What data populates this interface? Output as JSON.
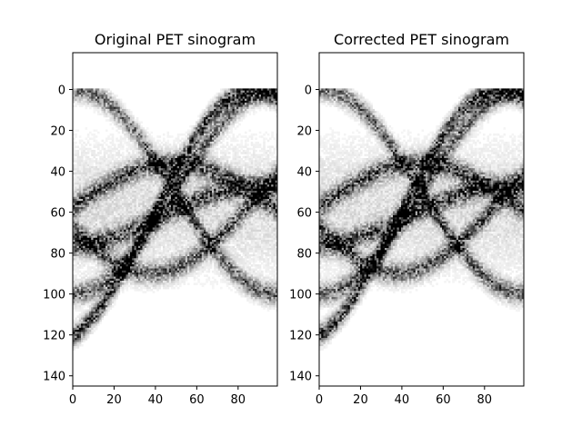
{
  "chart_data": [
    {
      "type": "heatmap",
      "title": "Original PET sinogram",
      "xlabel": "",
      "ylabel": "",
      "x_ticks": [
        0,
        20,
        40,
        60,
        80
      ],
      "y_ticks": [
        0,
        20,
        40,
        60,
        80,
        100,
        120,
        140
      ],
      "xlim": [
        0,
        99
      ],
      "ylim": [
        145,
        -18
      ],
      "colormap": "gray_r",
      "grid": false,
      "image_size": [
        100,
        128
      ],
      "sinusoid_traces": [
        {
          "center_row": 50,
          "amplitude": 50,
          "phase": 0.0,
          "weight": 0.55
        },
        {
          "center_row": 50,
          "amplitude": 50,
          "phase": 3.14,
          "weight": 0.55
        },
        {
          "center_row": 62,
          "amplitude": 62,
          "phase": 0.35,
          "weight": 0.75
        },
        {
          "center_row": 58,
          "amplitude": 22,
          "phase": 1.6,
          "weight": 0.6
        },
        {
          "center_row": 55,
          "amplitude": 35,
          "phase": -1.2,
          "weight": 0.55
        },
        {
          "center_row": 62,
          "amplitude": 15,
          "phase": 0.2,
          "weight": 0.6
        }
      ]
    },
    {
      "type": "heatmap",
      "title": "Corrected PET sinogram",
      "xlabel": "",
      "ylabel": "",
      "x_ticks": [
        0,
        20,
        40,
        60,
        80
      ],
      "y_ticks": [
        0,
        20,
        40,
        60,
        80,
        100,
        120,
        140
      ],
      "xlim": [
        0,
        99
      ],
      "ylim": [
        145,
        -18
      ],
      "colormap": "gray_r",
      "grid": false,
      "image_size": [
        100,
        128
      ],
      "sinusoid_traces": [
        {
          "center_row": 50,
          "amplitude": 50,
          "phase": 0.0,
          "weight": 0.55
        },
        {
          "center_row": 50,
          "amplitude": 50,
          "phase": 3.14,
          "weight": 0.55
        },
        {
          "center_row": 62,
          "amplitude": 62,
          "phase": 0.35,
          "weight": 0.75
        },
        {
          "center_row": 58,
          "amplitude": 22,
          "phase": 1.6,
          "weight": 0.6
        },
        {
          "center_row": 55,
          "amplitude": 35,
          "phase": -1.2,
          "weight": 0.55
        },
        {
          "center_row": 62,
          "amplitude": 15,
          "phase": 0.2,
          "weight": 0.6
        }
      ]
    }
  ]
}
